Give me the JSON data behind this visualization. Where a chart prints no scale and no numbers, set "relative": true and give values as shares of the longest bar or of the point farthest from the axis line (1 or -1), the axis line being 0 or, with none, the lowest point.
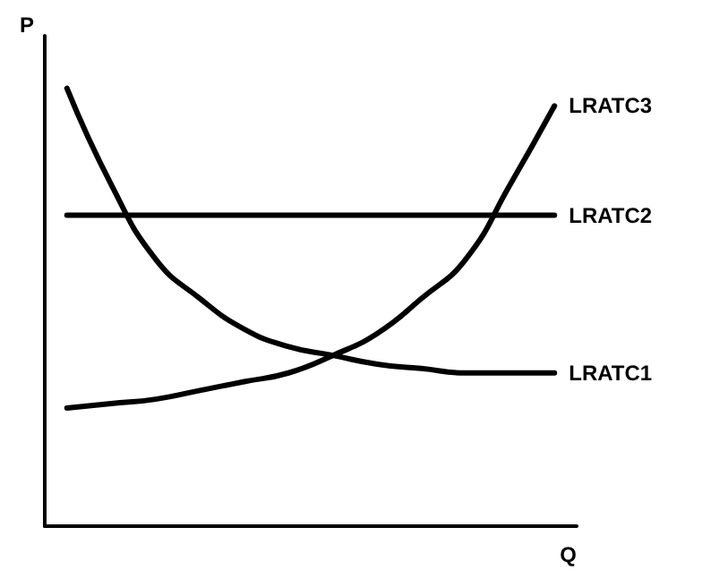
{
  "chart_data": {
    "type": "line",
    "relative": true,
    "xlabel": "Q",
    "ylabel": "P",
    "legend": false,
    "grid": false,
    "marker": "none",
    "line_style": "solid",
    "categories": [
      null,
      null,
      null,
      null,
      null,
      null,
      null,
      null,
      null,
      null,
      null,
      null
    ],
    "series": [
      {
        "name": "LRATC1",
        "color": "#000000",
        "values": [
          1,
          0.78,
          0.61,
          0.52,
          0.45,
          0.41,
          0.39,
          0.37,
          0.36,
          0.35,
          0.35,
          0.35
        ]
      },
      {
        "name": "LRATC2",
        "color": "#000000",
        "values": [
          0.71,
          0.71,
          0.71,
          0.71,
          0.71,
          0.71,
          0.71,
          0.71,
          0.71,
          0.71,
          0.71,
          0.71
        ]
      },
      {
        "name": "LRATC3",
        "color": "#000000",
        "values": [
          0.27,
          0.28,
          0.29,
          0.31,
          0.33,
          0.35,
          0.39,
          0.44,
          0.52,
          0.61,
          0.78,
          0.96
        ]
      }
    ]
  }
}
